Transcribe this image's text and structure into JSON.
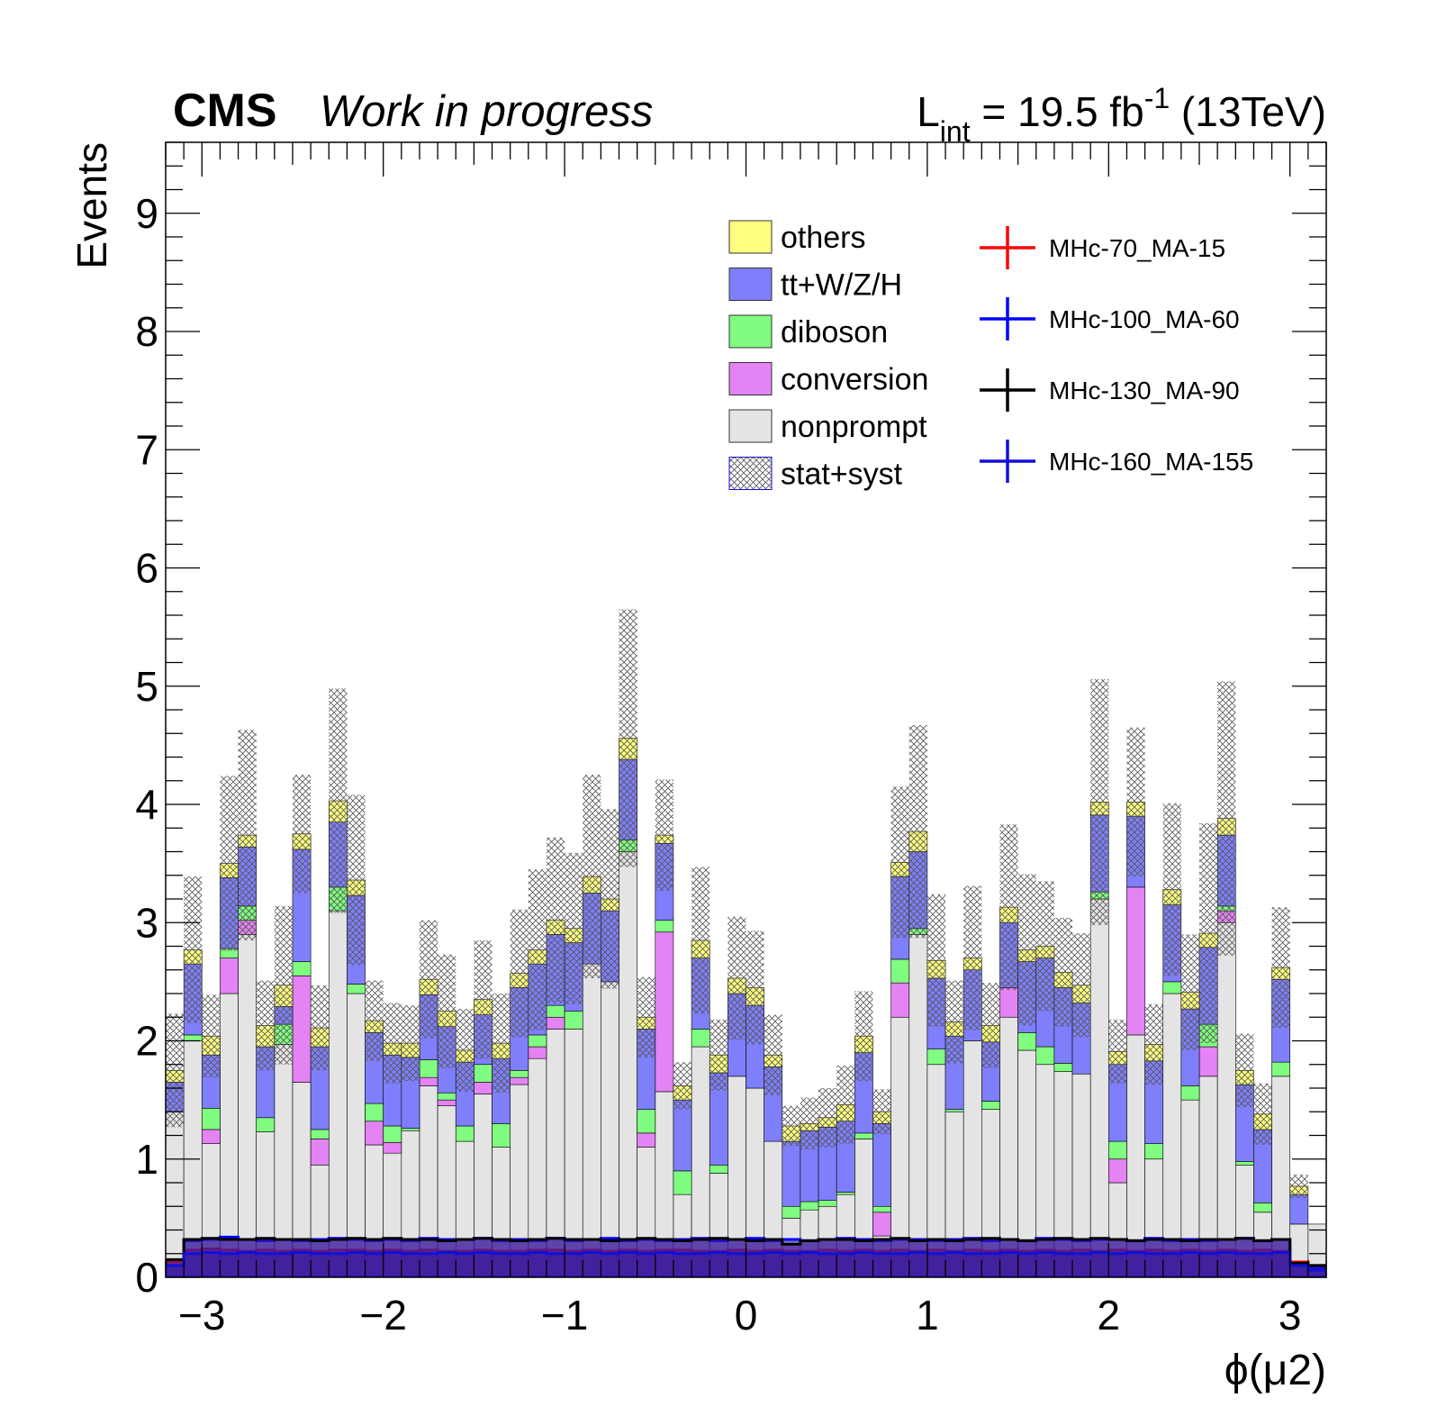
{
  "header": {
    "experiment": "CMS",
    "status": "Work in progress",
    "lumi_prefix": "L",
    "lumi_sub": "int",
    "lumi_value": " = 19.5 fb",
    "lumi_sup": "-1",
    "lumi_energy": " (13TeV)"
  },
  "colors": {
    "others": "#ffff80",
    "ttV": "#7f7ffb",
    "diboson": "#80fc80",
    "conversion": "#e483f3",
    "nonprompt": "#e4e4e4",
    "unc_hatch": "#555555",
    "sig1": "#ff0000",
    "sig2": "#0000ff",
    "sig3": "#000000",
    "sig4": "#1010d8",
    "sig_fill": "#3b1a9b"
  },
  "chart_data": {
    "type": "bar",
    "stacked": true,
    "xlabel": "ϕ(μ2)",
    "ylabel": "Events",
    "xlim": [
      -3.2,
      3.2
    ],
    "ylim": [
      0,
      9.6
    ],
    "nbins": 64,
    "xticks": [
      "−3",
      "−2",
      "−1",
      "0",
      "1",
      "2",
      "3"
    ],
    "xtick_values": [
      -3,
      -2,
      -1,
      0,
      1,
      2,
      3
    ],
    "yticks": [
      "0",
      "1",
      "2",
      "3",
      "4",
      "5",
      "6",
      "7",
      "8",
      "9"
    ],
    "ytick_values": [
      0,
      1,
      2,
      3,
      4,
      5,
      6,
      7,
      8,
      9
    ],
    "series": [
      {
        "name": "nonprompt",
        "color": "#e4e4e4",
        "values": [
          1.4,
          2.0,
          1.13,
          2.4,
          2.9,
          1.23,
          1.97,
          1.65,
          0.95,
          3.1,
          2.4,
          1.12,
          1.05,
          1.24,
          1.62,
          1.45,
          1.15,
          1.55,
          1.1,
          1.63,
          1.85,
          2.1,
          2.1,
          2.65,
          2.5,
          3.6,
          1.1,
          1.57,
          0.7,
          1.95,
          0.88,
          1.7,
          1.6,
          1.15,
          0.5,
          0.57,
          0.6,
          0.7,
          1.17,
          0.35,
          2.2,
          2.9,
          1.8,
          1.4,
          2.0,
          1.42,
          2.2,
          1.92,
          1.8,
          1.74,
          1.72,
          3.2,
          0.8,
          2.05,
          1.0,
          2.4,
          1.5,
          1.7,
          3.0,
          0.95,
          0.55,
          1.7,
          0.45,
          0.45
        ]
      },
      {
        "name": "conversion",
        "color": "#e483f3",
        "values": [
          0.0,
          0.0,
          0.12,
          0.3,
          0.12,
          0.0,
          0.0,
          0.9,
          0.22,
          0.0,
          0.0,
          0.2,
          0.09,
          0.0,
          0.07,
          0.05,
          0.0,
          0.1,
          0.0,
          0.06,
          0.1,
          0.1,
          0.0,
          0.0,
          0.0,
          0.0,
          0.12,
          1.35,
          0.0,
          0.0,
          0.0,
          0.0,
          0.0,
          0.0,
          0.0,
          0.0,
          0.0,
          0.0,
          0.0,
          0.2,
          0.29,
          0.0,
          0.0,
          0.0,
          0.0,
          0.0,
          0.25,
          0.0,
          0.0,
          0.0,
          0.0,
          0.0,
          0.2,
          1.25,
          0.0,
          0.0,
          0.0,
          0.25,
          0.1,
          0.0,
          0.0,
          0.0,
          0.0,
          0.0
        ]
      },
      {
        "name": "diboson",
        "color": "#80fc80",
        "values": [
          0.0,
          0.05,
          0.18,
          0.08,
          0.12,
          0.12,
          0.17,
          0.12,
          0.08,
          0.2,
          0.08,
          0.15,
          0.14,
          0.02,
          0.15,
          0.06,
          0.13,
          0.15,
          0.2,
          0.06,
          0.1,
          0.1,
          0.15,
          0.0,
          0.0,
          0.1,
          0.2,
          0.1,
          0.2,
          0.15,
          0.07,
          0.0,
          0.0,
          0.0,
          0.1,
          0.07,
          0.05,
          0.02,
          0.05,
          0.05,
          0.2,
          0.05,
          0.13,
          0.02,
          0.0,
          0.07,
          0.0,
          0.15,
          0.15,
          0.07,
          0.0,
          0.06,
          0.15,
          0.0,
          0.13,
          0.1,
          0.12,
          0.19,
          0.04,
          0.03,
          0.08,
          0.12,
          0.0,
          0.0
        ]
      },
      {
        "name": "tt+W/Z/H",
        "color": "#7f7ffb",
        "values": [
          0.25,
          0.6,
          0.45,
          0.6,
          0.5,
          0.6,
          0.15,
          0.95,
          0.7,
          0.55,
          0.75,
          0.6,
          0.6,
          0.6,
          0.55,
          0.56,
          0.54,
          0.42,
          0.55,
          0.7,
          0.6,
          0.6,
          0.58,
          0.6,
          0.6,
          0.68,
          0.68,
          0.65,
          0.6,
          0.6,
          0.78,
          0.7,
          0.7,
          0.63,
          0.55,
          0.6,
          0.62,
          0.6,
          0.68,
          0.7,
          0.7,
          0.65,
          0.6,
          0.62,
          0.6,
          0.5,
          0.55,
          0.6,
          0.75,
          0.64,
          0.6,
          0.65,
          0.65,
          0.6,
          0.7,
          0.65,
          0.65,
          0.65,
          0.6,
          0.65,
          0.62,
          0.7,
          0.25,
          0.0
        ]
      },
      {
        "name": "others",
        "color": "#ffff80",
        "values": [
          0.1,
          0.12,
          0.16,
          0.12,
          0.1,
          0.18,
          0.18,
          0.13,
          0.16,
          0.18,
          0.13,
          0.1,
          0.1,
          0.12,
          0.13,
          0.13,
          0.1,
          0.13,
          0.13,
          0.12,
          0.12,
          0.12,
          0.12,
          0.14,
          0.1,
          0.18,
          0.1,
          0.07,
          0.12,
          0.15,
          0.15,
          0.13,
          0.15,
          0.1,
          0.13,
          0.06,
          0.08,
          0.14,
          0.14,
          0.1,
          0.12,
          0.17,
          0.15,
          0.12,
          0.1,
          0.14,
          0.13,
          0.1,
          0.1,
          0.13,
          0.15,
          0.11,
          0.11,
          0.12,
          0.14,
          0.13,
          0.14,
          0.12,
          0.14,
          0.12,
          0.13,
          0.1,
          0.07,
          0.0
        ]
      }
    ],
    "uncertainty": {
      "name": "stat+syst",
      "values": [
        0.48,
        0.62,
        0.35,
        0.74,
        0.89,
        0.38,
        0.67,
        0.5,
        0.36,
        0.95,
        0.72,
        0.34,
        0.34,
        0.32,
        0.5,
        0.48,
        0.35,
        0.5,
        0.42,
        0.54,
        0.68,
        0.7,
        0.64,
        0.86,
        0.76,
        1.09,
        0.34,
        0.47,
        0.2,
        0.62,
        0.3,
        0.52,
        0.48,
        0.34,
        0.17,
        0.22,
        0.25,
        0.33,
        0.38,
        0.19,
        0.64,
        0.9,
        0.56,
        0.35,
        0.61,
        0.36,
        0.7,
        0.64,
        0.55,
        0.46,
        0.44,
        1.04,
        0.27,
        0.63,
        0.34,
        0.73,
        0.49,
        0.93,
        1.16,
        0.31,
        0.26,
        0.51,
        0.1,
        0.0
      ]
    },
    "signals": [
      {
        "name": "MHc-70_MA-15",
        "color": "#ff0000",
        "values": [
          0.13,
          0.23,
          0.24,
          0.23,
          0.22,
          0.23,
          0.22,
          0.23,
          0.22,
          0.23,
          0.23,
          0.22,
          0.23,
          0.22,
          0.23,
          0.22,
          0.22,
          0.23,
          0.22,
          0.22,
          0.23,
          0.23,
          0.22,
          0.23,
          0.22,
          0.23,
          0.22,
          0.23,
          0.23,
          0.22,
          0.22,
          0.23,
          0.22,
          0.23,
          0.22,
          0.22,
          0.23,
          0.22,
          0.23,
          0.22,
          0.23,
          0.22,
          0.23,
          0.22,
          0.23,
          0.22,
          0.23,
          0.22,
          0.23,
          0.22,
          0.23,
          0.22,
          0.23,
          0.22,
          0.23,
          0.22,
          0.23,
          0.22,
          0.23,
          0.22,
          0.23,
          0.22,
          0.13,
          0.1
        ]
      },
      {
        "name": "MHc-100_MA-60",
        "color": "#0000ff",
        "values": [
          0.1,
          0.31,
          0.32,
          0.34,
          0.32,
          0.31,
          0.32,
          0.31,
          0.32,
          0.33,
          0.32,
          0.31,
          0.32,
          0.31,
          0.33,
          0.32,
          0.32,
          0.33,
          0.31,
          0.32,
          0.31,
          0.33,
          0.31,
          0.32,
          0.33,
          0.31,
          0.32,
          0.31,
          0.32,
          0.33,
          0.31,
          0.32,
          0.33,
          0.31,
          0.32,
          0.31,
          0.32,
          0.33,
          0.32,
          0.31,
          0.32,
          0.32,
          0.31,
          0.32,
          0.33,
          0.31,
          0.32,
          0.31,
          0.33,
          0.32,
          0.31,
          0.32,
          0.32,
          0.31,
          0.33,
          0.31,
          0.32,
          0.31,
          0.32,
          0.33,
          0.31,
          0.32,
          0.1,
          0.08
        ]
      },
      {
        "name": "MHc-130_MA-90",
        "color": "#000000",
        "values": [
          0.15,
          0.32,
          0.33,
          0.32,
          0.32,
          0.33,
          0.32,
          0.32,
          0.31,
          0.32,
          0.33,
          0.32,
          0.33,
          0.32,
          0.32,
          0.31,
          0.32,
          0.33,
          0.32,
          0.31,
          0.32,
          0.33,
          0.32,
          0.32,
          0.31,
          0.32,
          0.33,
          0.32,
          0.31,
          0.32,
          0.33,
          0.32,
          0.31,
          0.32,
          0.28,
          0.31,
          0.32,
          0.32,
          0.31,
          0.32,
          0.33,
          0.31,
          0.32,
          0.31,
          0.32,
          0.33,
          0.32,
          0.31,
          0.32,
          0.33,
          0.32,
          0.33,
          0.32,
          0.31,
          0.32,
          0.32,
          0.31,
          0.32,
          0.32,
          0.33,
          0.31,
          0.32,
          0.12,
          0.1
        ]
      },
      {
        "name": "MHc-160_MA-155",
        "color": "#1010d8",
        "values": [
          0.1,
          0.2,
          0.21,
          0.2,
          0.21,
          0.2,
          0.2,
          0.21,
          0.2,
          0.2,
          0.21,
          0.2,
          0.21,
          0.2,
          0.2,
          0.21,
          0.2,
          0.21,
          0.2,
          0.2,
          0.21,
          0.2,
          0.2,
          0.21,
          0.2,
          0.21,
          0.2,
          0.21,
          0.2,
          0.2,
          0.21,
          0.2,
          0.2,
          0.21,
          0.2,
          0.21,
          0.2,
          0.2,
          0.21,
          0.2,
          0.2,
          0.21,
          0.2,
          0.21,
          0.2,
          0.2,
          0.21,
          0.2,
          0.21,
          0.2,
          0.2,
          0.21,
          0.2,
          0.21,
          0.2,
          0.2,
          0.21,
          0.2,
          0.21,
          0.2,
          0.2,
          0.21,
          0.1,
          0.06
        ]
      }
    ],
    "legend": {
      "placement": "top-right",
      "background": [
        "others",
        "tt+W/Z/H",
        "diboson",
        "conversion",
        "nonprompt",
        "stat+syst"
      ],
      "signals": [
        "MHc-70_MA-15",
        "MHc-100_MA-60",
        "MHc-130_MA-90",
        "MHc-160_MA-155"
      ]
    },
    "grid": false
  }
}
